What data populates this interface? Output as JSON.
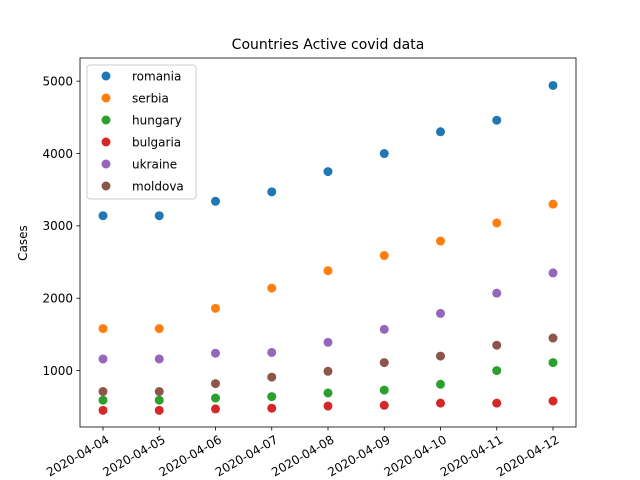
{
  "chart_data": {
    "type": "scatter",
    "title": "Countries Active covid data",
    "xlabel": "",
    "ylabel": "Cases",
    "x": [
      "2020-04-04",
      "2020-04-05",
      "2020-04-06",
      "2020-04-07",
      "2020-04-08",
      "2020-04-09",
      "2020-04-10",
      "2020-04-11",
      "2020-04-12"
    ],
    "ylim": [
      220,
      5320
    ],
    "yticks": [
      1000,
      2000,
      3000,
      4000,
      5000
    ],
    "grid": false,
    "legend_position": "top-left",
    "series": [
      {
        "name": "romania",
        "color": "#1f77b4",
        "values": [
          3140,
          3140,
          3340,
          3470,
          3750,
          4000,
          4300,
          4460,
          4940
        ]
      },
      {
        "name": "serbia",
        "color": "#ff7f0e",
        "values": [
          1580,
          1580,
          1860,
          2140,
          2380,
          2590,
          2790,
          3040,
          3300
        ]
      },
      {
        "name": "hungary",
        "color": "#2ca02c",
        "values": [
          590,
          590,
          620,
          640,
          690,
          730,
          810,
          1000,
          1110
        ]
      },
      {
        "name": "bulgaria",
        "color": "#d62728",
        "values": [
          450,
          450,
          470,
          480,
          510,
          520,
          550,
          550,
          580
        ]
      },
      {
        "name": "ukraine",
        "color": "#9467bd",
        "values": [
          1160,
          1160,
          1240,
          1250,
          1390,
          1570,
          1790,
          2070,
          2350
        ]
      },
      {
        "name": "moldova",
        "color": "#8c564b",
        "values": [
          710,
          710,
          820,
          910,
          990,
          1110,
          1200,
          1350,
          1450
        ]
      }
    ]
  }
}
